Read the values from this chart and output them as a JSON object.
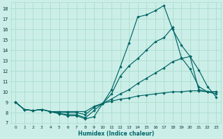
{
  "xlabel": "Humidex (Indice chaleur)",
  "bg_color": "#cceee8",
  "grid_color": "#aaddcc",
  "line_color": "#006666",
  "xlim": [
    -0.5,
    23.5
  ],
  "ylim": [
    7,
    18.6
  ],
  "xticks": [
    0,
    1,
    2,
    3,
    4,
    5,
    6,
    7,
    8,
    9,
    10,
    11,
    12,
    13,
    14,
    15,
    16,
    17,
    18,
    19,
    20,
    21,
    22,
    23
  ],
  "yticks": [
    7,
    8,
    9,
    10,
    11,
    12,
    13,
    14,
    15,
    16,
    17,
    18
  ],
  "line1_x": [
    0,
    1,
    2,
    3,
    4,
    5,
    6,
    7,
    8,
    9,
    10,
    11,
    12,
    13,
    14,
    15,
    16,
    17,
    18,
    19,
    20,
    21,
    22,
    23
  ],
  "line1_y": [
    9.0,
    8.3,
    8.2,
    8.3,
    8.1,
    7.9,
    7.7,
    7.7,
    7.4,
    7.6,
    8.9,
    10.2,
    12.4,
    14.7,
    17.2,
    17.4,
    17.8,
    18.3,
    16.0,
    14.5,
    13.4,
    12.1,
    10.5,
    9.5
  ],
  "line2_x": [
    0,
    1,
    2,
    3,
    4,
    5,
    6,
    7,
    8,
    9,
    10,
    11,
    12,
    13,
    14,
    15,
    16,
    17,
    18,
    19,
    20,
    21,
    22,
    23
  ],
  "line2_y": [
    9.0,
    8.3,
    8.2,
    8.3,
    8.1,
    7.9,
    7.8,
    7.8,
    7.5,
    8.2,
    8.9,
    9.8,
    11.5,
    12.5,
    13.2,
    14.0,
    14.8,
    15.2,
    16.2,
    13.3,
    12.2,
    10.5,
    10.0,
    9.8
  ],
  "line3_x": [
    0,
    1,
    2,
    3,
    4,
    5,
    6,
    7,
    8,
    9,
    10,
    11,
    12,
    13,
    14,
    15,
    16,
    17,
    18,
    19,
    20,
    21,
    22,
    23
  ],
  "line3_y": [
    9.0,
    8.3,
    8.2,
    8.3,
    8.1,
    8.0,
    8.0,
    8.0,
    7.8,
    8.5,
    8.9,
    9.3,
    9.8,
    10.2,
    10.8,
    11.3,
    11.8,
    12.3,
    12.9,
    13.2,
    13.4,
    10.2,
    10.0,
    10.0
  ],
  "line4_x": [
    0,
    1,
    2,
    3,
    4,
    5,
    6,
    7,
    8,
    9,
    10,
    11,
    12,
    13,
    14,
    15,
    16,
    17,
    18,
    19,
    20,
    21,
    22,
    23
  ],
  "line4_y": [
    9.0,
    8.3,
    8.2,
    8.3,
    8.1,
    8.1,
    8.1,
    8.1,
    8.1,
    8.6,
    8.9,
    9.1,
    9.3,
    9.4,
    9.6,
    9.7,
    9.8,
    9.9,
    10.0,
    10.0,
    10.1,
    10.1,
    10.0,
    10.0
  ]
}
